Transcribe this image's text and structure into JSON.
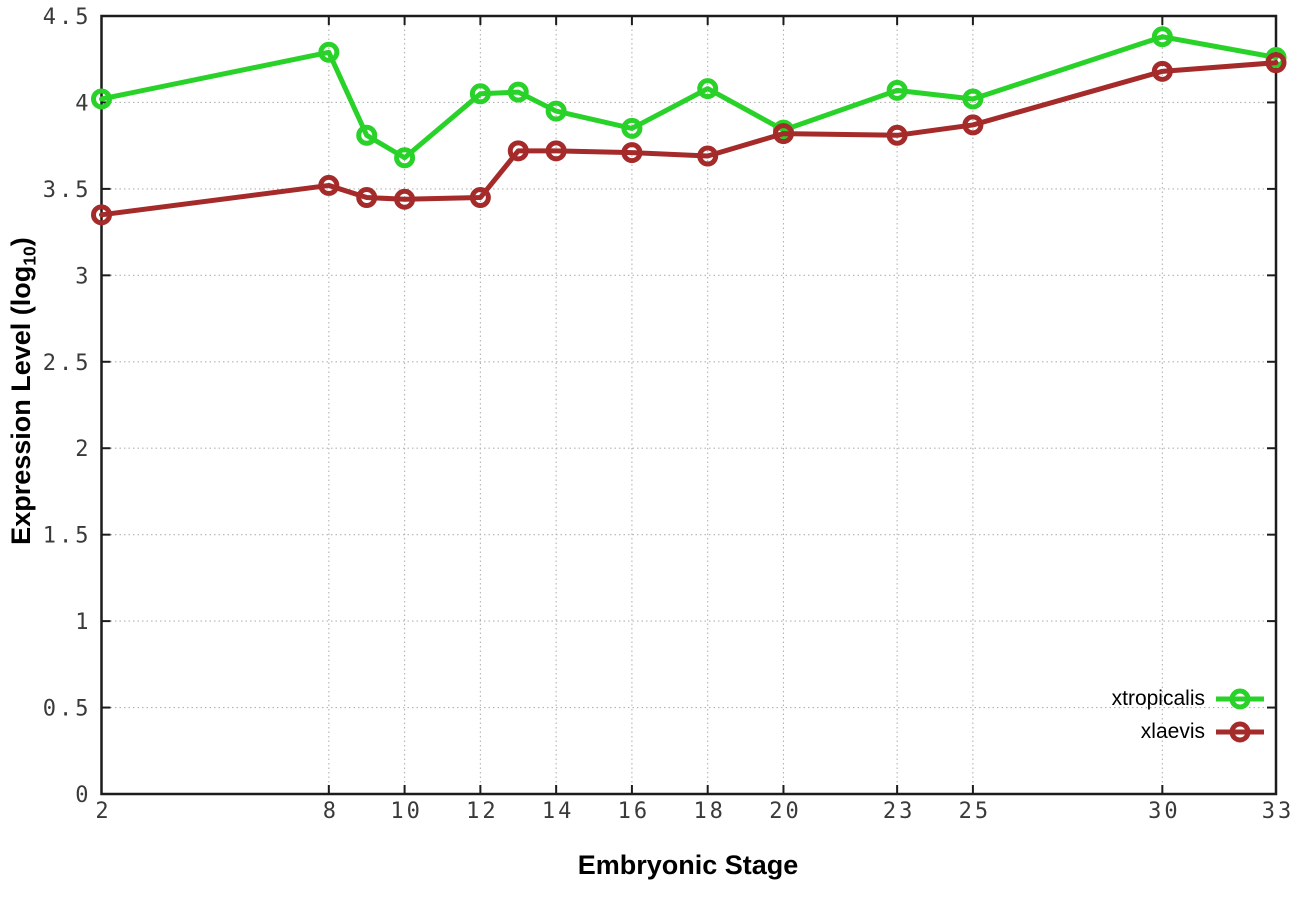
{
  "chart_data": {
    "type": "line",
    "title": "",
    "xlabel": "Embryonic Stage",
    "ylabel": "Expression Level (log10)",
    "ylabel_parts": {
      "prefix": "Expression Level (log",
      "sub": "10",
      "suffix": ")"
    },
    "x": [
      2,
      8,
      9,
      10,
      12,
      13,
      14,
      16,
      18,
      20,
      23,
      25,
      30,
      33
    ],
    "series": [
      {
        "name": "xtropicalis",
        "color": "#28d228",
        "values": [
          4.02,
          4.29,
          3.81,
          3.68,
          4.05,
          4.06,
          3.95,
          3.85,
          4.08,
          3.84,
          4.07,
          4.02,
          4.38,
          4.26
        ]
      },
      {
        "name": "xlaevis",
        "color": "#a52a2a",
        "values": [
          3.35,
          3.52,
          3.45,
          3.44,
          3.45,
          3.72,
          3.72,
          3.71,
          3.69,
          3.82,
          3.81,
          3.87,
          4.18,
          4.23
        ]
      }
    ],
    "xticks": [
      2,
      8,
      10,
      12,
      14,
      16,
      18,
      20,
      23,
      25,
      30,
      33
    ],
    "yticks": [
      0,
      0.5,
      1,
      1.5,
      2,
      2.5,
      3,
      3.5,
      4,
      4.5
    ],
    "xlim": [
      2,
      33
    ],
    "ylim": [
      0,
      4.5
    ],
    "grid": true,
    "legend_position": "bottom-right"
  },
  "styles": {
    "background": "#ffffff",
    "axis_color": "#1c1c1c",
    "grid_color": "#b3b3b3",
    "tick_label_color": "#3a3a3a",
    "xtropicalis_color": "#28d228",
    "xlaevis_color": "#a52a2a"
  }
}
